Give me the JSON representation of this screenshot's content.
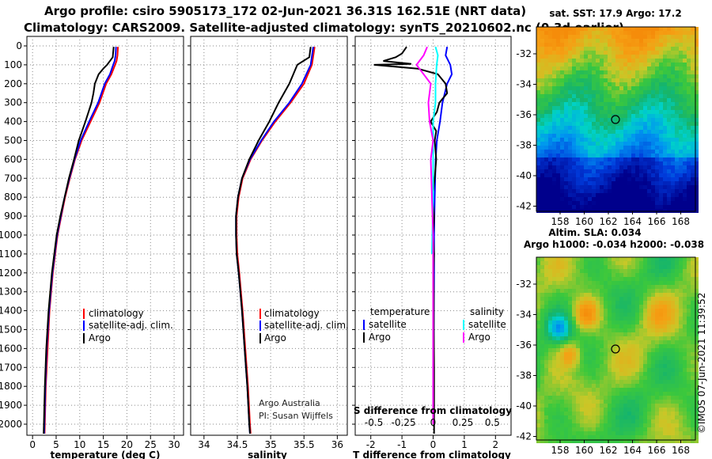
{
  "header": {
    "line1": "Argo profile: csiro 5905173_172 02-Jun-2021 36.31S 162.51E (NRT data)",
    "line2": "Climatology: CARS2009. Satellite-adjusted climatology: synTS_20210602.nc (0.3d earlier)"
  },
  "colors": {
    "argo": "#000000",
    "climatology": "#ff0000",
    "satellite": "#0000ff",
    "sat_salinity": "#00ffff",
    "argo_salinity": "#ff00ff"
  },
  "chart_data": [
    {
      "type": "line",
      "title": "",
      "xlabel": "temperature (deg C)",
      "ylabel": "",
      "xlim": [
        -1,
        32
      ],
      "ylim": [
        2100,
        0
      ],
      "xticks": [
        0,
        5,
        10,
        15,
        20,
        25,
        30
      ],
      "xtick_labels": [
        "0",
        "5",
        "10",
        "15",
        "20",
        "25",
        "30"
      ],
      "yticks": [
        0,
        100,
        200,
        300,
        400,
        500,
        600,
        700,
        800,
        900,
        1000,
        1100,
        1200,
        1300,
        1400,
        1500,
        1600,
        1700,
        1800,
        1900,
        2000
      ],
      "ytick_labels": [
        "0",
        "100",
        "200",
        "300",
        "400",
        "500",
        "600",
        "700",
        "800",
        "900",
        "1000",
        "1100",
        "1200",
        "1300",
        "1400",
        "1500",
        "1600",
        "1700",
        "1800",
        "1900",
        "2000"
      ],
      "grid": true,
      "legend": {
        "position": "lower-right",
        "entries": [
          "climatology",
          "satellite-adj. clim.",
          "Argo"
        ]
      },
      "annotation": [],
      "series": [
        {
          "name": "climatology",
          "color": "#ff0000",
          "depth": [
            5,
            50,
            80,
            100,
            150,
            200,
            300,
            400,
            500,
            600,
            700,
            800,
            900,
            1000,
            1200,
            1400,
            1600,
            1800,
            2000,
            2050
          ],
          "values": [
            18.1,
            18.0,
            17.8,
            17.5,
            16.7,
            15.6,
            14.2,
            12.3,
            10.4,
            9.0,
            7.9,
            6.9,
            6.1,
            5.3,
            4.3,
            3.6,
            3.2,
            2.8,
            2.6,
            2.55
          ]
        },
        {
          "name": "satellite-adj. clim.",
          "color": "#0000ff",
          "depth": [
            5,
            50,
            80,
            100,
            150,
            200,
            300,
            400,
            500,
            600,
            700,
            800,
            900,
            1000,
            1200,
            1400,
            1600,
            1800,
            2000,
            2050
          ],
          "values": [
            17.7,
            17.6,
            17.4,
            17.1,
            16.4,
            15.3,
            13.9,
            12.0,
            10.2,
            8.9,
            7.8,
            6.8,
            6.0,
            5.2,
            4.2,
            3.5,
            3.0,
            2.7,
            2.5,
            2.45
          ]
        },
        {
          "name": "Argo",
          "color": "#000000",
          "depth": [
            5,
            60,
            100,
            120,
            150,
            200,
            250,
            300,
            400,
            500,
            600,
            700,
            800,
            900,
            1000,
            1200,
            1400,
            1600,
            1800,
            2000,
            2050
          ],
          "values": [
            17.2,
            17.0,
            15.8,
            15.0,
            14.0,
            13.2,
            12.9,
            12.5,
            11.2,
            9.8,
            8.8,
            7.7,
            6.8,
            5.9,
            5.1,
            4.1,
            3.4,
            2.9,
            2.6,
            2.4,
            2.35
          ]
        }
      ]
    },
    {
      "type": "line",
      "title": "",
      "xlabel": "salinity",
      "ylabel": "",
      "xlim": [
        33.8,
        36.15
      ],
      "ylim": [
        2100,
        0
      ],
      "xticks": [
        34,
        34.5,
        35,
        35.5,
        36
      ],
      "xtick_labels": [
        "34",
        "34.5",
        "35",
        "35.5",
        "36"
      ],
      "grid": true,
      "legend": {
        "position": "lower-right",
        "entries": [
          "climatology",
          "satellite-adj. clim.",
          "Argo"
        ]
      },
      "annotation": [
        "Argo Australia",
        "PI: Susan Wijffels"
      ],
      "series": [
        {
          "name": "climatology",
          "color": "#ff0000",
          "depth": [
            5,
            100,
            200,
            300,
            400,
            500,
            600,
            700,
            800,
            900,
            1000,
            1100,
            1200,
            1400,
            1600,
            1800,
            2000,
            2050
          ],
          "values": [
            35.66,
            35.62,
            35.5,
            35.3,
            35.07,
            34.87,
            34.7,
            34.58,
            34.52,
            34.49,
            34.49,
            34.5,
            34.53,
            34.58,
            34.62,
            34.66,
            34.69,
            34.7
          ]
        },
        {
          "name": "satellite-adj. clim.",
          "color": "#0000ff",
          "depth": [
            5,
            100,
            200,
            300,
            400,
            500,
            600,
            700,
            800,
            900,
            1000,
            1100,
            1200,
            1400,
            1600,
            1800,
            2000,
            2050
          ],
          "values": [
            35.64,
            35.6,
            35.47,
            35.28,
            35.05,
            34.86,
            34.69,
            34.57,
            34.51,
            34.48,
            34.48,
            34.49,
            34.52,
            34.57,
            34.61,
            34.65,
            34.68,
            34.69
          ]
        },
        {
          "name": "Argo",
          "color": "#000000",
          "depth": [
            5,
            60,
            100,
            200,
            300,
            400,
            500,
            600,
            700,
            800,
            900,
            1000,
            1100,
            1200,
            1400,
            1600,
            1800,
            2000,
            2050
          ],
          "values": [
            35.6,
            35.58,
            35.4,
            35.28,
            35.12,
            34.98,
            34.82,
            34.68,
            34.57,
            34.51,
            34.48,
            34.48,
            34.49,
            34.52,
            34.57,
            34.61,
            34.65,
            34.68,
            34.69
          ]
        }
      ]
    },
    {
      "type": "line",
      "title": "",
      "xlabel": "T difference from climatology",
      "xlabel_top": "S difference from climatology",
      "ylabel": "",
      "xlim": [
        -2.5,
        2.5
      ],
      "ylim": [
        2100,
        0
      ],
      "xticks": [
        -2,
        -1,
        0,
        1,
        2
      ],
      "xtick_labels": [
        "-2",
        "-1",
        "0",
        "1",
        "2"
      ],
      "sticks_values": [
        -0.5,
        -0.25,
        0,
        0.25,
        0.5
      ],
      "sticks": [
        "-0.5",
        "-0.25",
        "0",
        "0.25",
        "0.5"
      ],
      "grid": true,
      "legend": {
        "position": "lower-right",
        "entries": [
          "temperature",
          "satellite",
          "Argo",
          "salinity",
          "satellite",
          "Argo"
        ]
      },
      "annotation": [],
      "series": [
        {
          "name": "temperature satellite",
          "color": "#0000ff",
          "depth": [
            5,
            50,
            100,
            150,
            200,
            300,
            400,
            500,
            600,
            800,
            1000,
            1200,
            1500,
            2000
          ],
          "values": [
            0.45,
            0.4,
            0.55,
            0.6,
            0.45,
            0.3,
            0.22,
            0.12,
            0.08,
            0.05,
            0.03,
            0.03,
            0.02,
            0.02
          ]
        },
        {
          "name": "temperature Argo",
          "color": "#000000",
          "depth": [
            5,
            40,
            60,
            80,
            95,
            100,
            120,
            150,
            200,
            250,
            300,
            350,
            400,
            450,
            500,
            600,
            700,
            800,
            900,
            1000,
            1100,
            1200,
            1300,
            1500,
            1700,
            1900,
            2050
          ],
          "values": [
            -0.85,
            -1.0,
            -1.2,
            -1.6,
            -0.7,
            -1.9,
            -0.5,
            0.15,
            0.4,
            0.45,
            0.2,
            0.12,
            -0.08,
            0.1,
            0.05,
            0.1,
            0.05,
            -0.02,
            0.03,
            0.0,
            0.03,
            0.01,
            0.02,
            0.02,
            0.03,
            0.03,
            0.03
          ]
        },
        {
          "name": "salinity satellite",
          "color": "#00ffff",
          "depth": [
            5,
            50,
            100,
            200,
            300,
            400,
            500,
            800,
            1100
          ],
          "values": [
            0.02,
            0.04,
            0.03,
            0.02,
            0.02,
            0.0,
            0.0,
            0.0,
            -0.01
          ]
        },
        {
          "name": "salinity Argo",
          "color": "#ff00ff",
          "depth": [
            5,
            50,
            100,
            150,
            200,
            300,
            400,
            500,
            600,
            800,
            1000,
            1200,
            1600,
            2000
          ],
          "values": [
            -0.05,
            -0.08,
            -0.14,
            -0.08,
            -0.02,
            -0.04,
            -0.03,
            0.0,
            -0.02,
            -0.01,
            0.0,
            0.0,
            0.0,
            0.0
          ]
        }
      ]
    }
  ],
  "maps": {
    "sst": {
      "title": "sat. SST: 17.9 Argo: 17.2",
      "lon_ticks": [
        "158",
        "160",
        "162",
        "164",
        "166",
        "168"
      ],
      "lat_ticks": [
        "-32",
        "-34",
        "-36",
        "-38",
        "-40",
        "-42"
      ]
    },
    "sla": {
      "title1": "Altim. SLA: 0.034",
      "title2": "Argo h1000: -0.034 h2000: -0.038",
      "lon_ticks": [
        "158",
        "160",
        "162",
        "164",
        "166",
        "168"
      ],
      "lat_ticks": [
        "-32",
        "-34",
        "-36",
        "-38",
        "-40",
        "-42"
      ]
    }
  },
  "footer": {
    "watermark": "©IMOS 07-Jun-2021 11:39:52"
  },
  "icons": {
    "argo_marker": "circle-marker-icon"
  }
}
